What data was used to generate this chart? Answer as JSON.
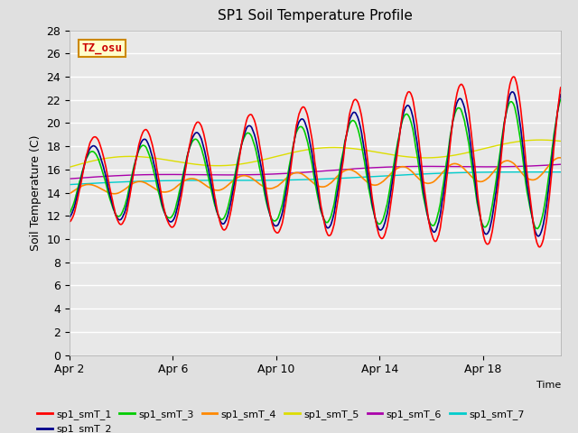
{
  "title": "SP1 Soil Temperature Profile",
  "xlabel": "Time",
  "ylabel": "Soil Temperature (C)",
  "annotation": "TZ_osu",
  "ylim": [
    0,
    28
  ],
  "yticks": [
    0,
    2,
    4,
    6,
    8,
    10,
    12,
    14,
    16,
    18,
    20,
    22,
    24,
    26,
    28
  ],
  "bg_color": "#e0e0e0",
  "plot_bg_color": "#e8e8e8",
  "series_colors": {
    "sp1_smT_1": "#ff0000",
    "sp1_smT_2": "#00008b",
    "sp1_smT_3": "#00cc00",
    "sp1_smT_4": "#ff8800",
    "sp1_smT_5": "#dddd00",
    "sp1_smT_6": "#aa00aa",
    "sp1_smT_7": "#00cccc"
  },
  "legend_labels": [
    "sp1_smT_1",
    "sp1_smT_2",
    "sp1_smT_3",
    "sp1_smT_4",
    "sp1_smT_5",
    "sp1_smT_6",
    "sp1_smT_7"
  ],
  "n_days": 19,
  "xtick_dates": [
    "Apr 2",
    "Apr 6",
    "Apr 10",
    "Apr 14",
    "Apr 18"
  ],
  "xtick_positions": [
    0,
    4,
    8,
    12,
    16
  ]
}
